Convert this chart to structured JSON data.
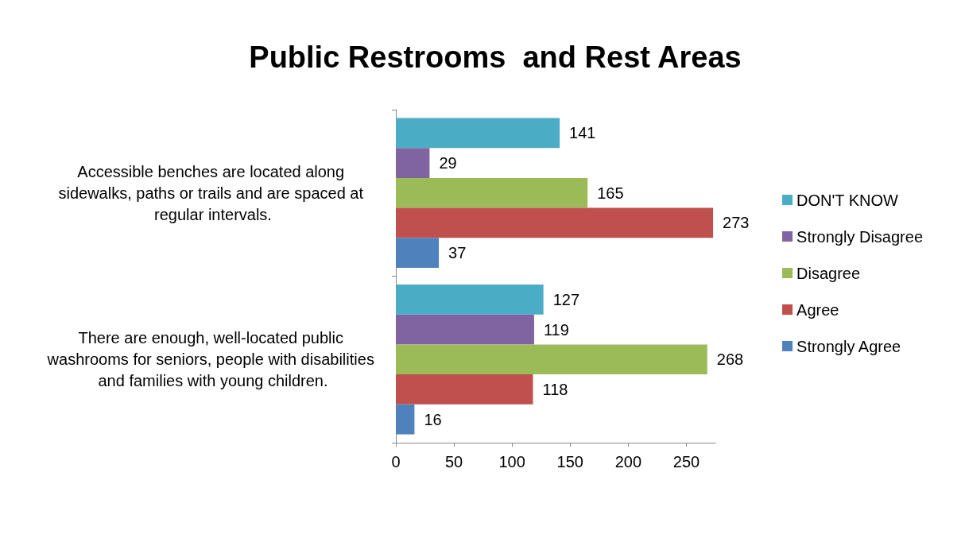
{
  "chart_data": {
    "type": "bar",
    "orientation": "horizontal",
    "title": "Public Restrooms  and Rest Areas",
    "categories": [
      "Accessible benches are located along sidewalks, paths or trails and are spaced at regular intervals.",
      "There are enough, well-located public washrooms for seniors, people with disabilities and families with young children."
    ],
    "series": [
      {
        "name": "DON'T KNOW",
        "color": "#4bacc6",
        "values": [
          141,
          127
        ]
      },
      {
        "name": "Strongly Disagree",
        "color": "#8064a2",
        "values": [
          29,
          119
        ]
      },
      {
        "name": "Disagree",
        "color": "#9bbb59",
        "values": [
          165,
          268
        ]
      },
      {
        "name": "Agree",
        "color": "#c0504d",
        "values": [
          273,
          118
        ]
      },
      {
        "name": "Strongly Agree",
        "color": "#4f81bd",
        "values": [
          37,
          16
        ]
      }
    ],
    "xlim": [
      0,
      275
    ],
    "xticks": [
      0,
      50,
      100,
      150,
      200,
      250
    ],
    "grid": false,
    "legend": "right",
    "data_labels": true
  }
}
